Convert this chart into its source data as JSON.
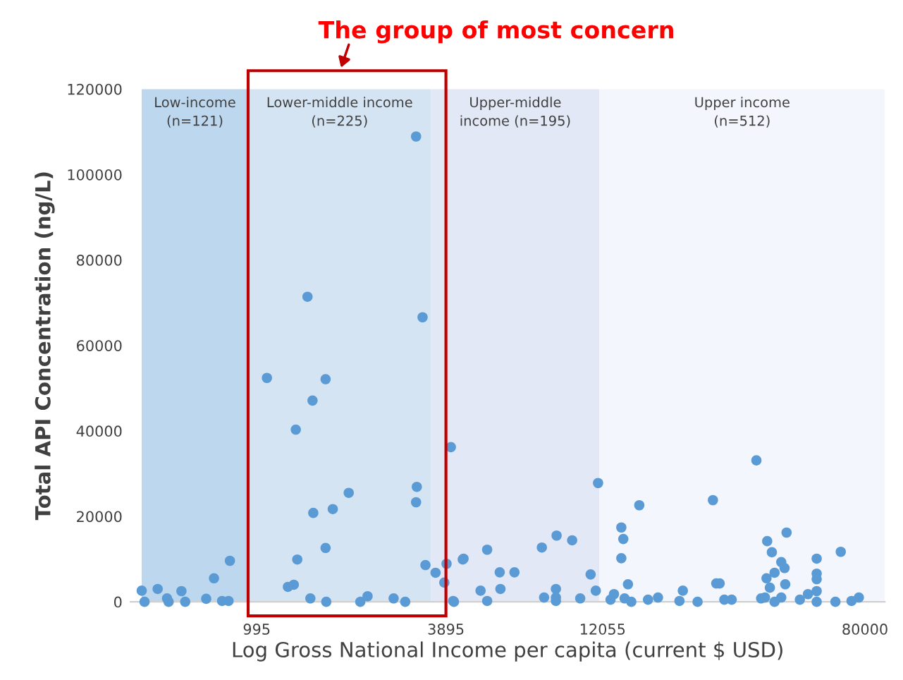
{
  "chart_data": {
    "type": "scatter",
    "xlabel": "Log Gross National Income per capita (current $ USD)",
    "ylabel": "Total API Concentration (ng/L)",
    "annotations": [
      "The group of most concern"
    ],
    "log": "x",
    "marker": "circle",
    "xlim": [
      400,
      92400
    ],
    "xticks": [
      995,
      3895,
      12055,
      80000
    ],
    "ylim": [
      0,
      120000
    ],
    "yticks": [
      0,
      20000,
      40000,
      60000,
      80000,
      100000,
      120000
    ],
    "bands": [
      {
        "axis": "x",
        "from": 434,
        "to": 935,
        "label": "Low-income\n(n=121)",
        "color": "#bdd7ee"
      },
      {
        "axis": "x",
        "from": 935,
        "to": 3500,
        "label": "Lower-middle income\n(n=225)",
        "color": "#d5e4f3"
      },
      {
        "axis": "x",
        "from": 3500,
        "to": 11780,
        "label": "Upper-middle\nincome (n=195)",
        "color": "#e2e8f5"
      },
      {
        "axis": "x",
        "from": 11780,
        "to": 92400,
        "label": "Upper income\n(n=512)",
        "color": "#f3f6fc"
      }
    ],
    "series": [
      {
        "color": "#5b9bd5",
        "x": [
          434,
          443,
          487,
          521,
          527,
          578,
          594,
          691,
          731,
          775,
          812,
          820,
          1071,
          1246,
          1300,
          1319,
          1333,
          1435,
          1465,
          1488,
          1496,
          1635,
          1635,
          1643,
          1722,
          1932,
          2100,
          2213,
          2671,
          2904,
          3140,
          3157,
          3140,
          3291,
          3360,
          3614,
          3850,
          3912,
          4037,
          4127,
          4398,
          11670,
          15710,
          26720,
          13800,
          14000,
          13800,
          14480,
          11060,
          11480,
          9680,
          8653,
          7780,
          5244,
          4422,
          5741,
          6385,
          5000,
          5771,
          5244,
          4103,
          7907,
          8610,
          8610,
          8610,
          10260,
          13090,
          12770,
          14130,
          14830,
          16730,
          17980,
          21510,
          20990,
          23920,
          27370,
          36560,
          45450,
          39520,
          40880,
          67190,
          56480,
          43740,
          44800,
          41680,
          56480,
          56480,
          28050,
          39330,
          45020,
          40290,
          56480,
          29010,
          30590,
          37830,
          41680,
          43740,
          50030,
          53030,
          56480,
          64650,
          72610,
          76560,
          38900
        ],
        "values": [
          2600,
          0,
          3000,
          800,
          0,
          2500,
          0,
          700,
          5500,
          200,
          200,
          9600,
          52400,
          3500,
          4000,
          40300,
          9900,
          71400,
          800,
          47100,
          20800,
          52100,
          12600,
          0,
          21700,
          25500,
          0,
          1300,
          800,
          0,
          108900,
          26900,
          23300,
          66600,
          8600,
          6800,
          4500,
          8900,
          36200,
          0,
          9900,
          27800,
          22600,
          23800,
          17400,
          14700,
          10200,
          4100,
          6400,
          2600,
          14400,
          15500,
          12700,
          12200,
          10100,
          6900,
          6900,
          2600,
          3000,
          200,
          200,
          1000,
          3000,
          1000,
          200,
          800,
          1800,
          500,
          800,
          0,
          500,
          1000,
          2600,
          200,
          0,
          4300,
          33100,
          16200,
          14200,
          11600,
          11700,
          10100,
          9300,
          7900,
          6800,
          6600,
          5300,
          4300,
          5500,
          4100,
          3300,
          2500,
          500,
          500,
          800,
          0,
          1000,
          500,
          1800,
          0,
          0,
          200,
          1000,
          1000
        ]
      }
    ]
  }
}
